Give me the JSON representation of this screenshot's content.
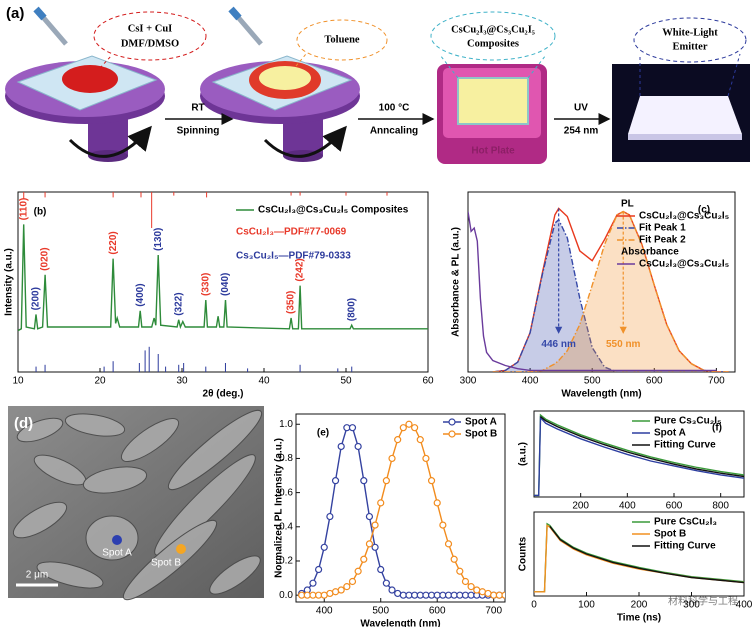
{
  "panel_a": {
    "label": "(a)",
    "step1_callout": [
      "CsI + CuI",
      "DMF/DMSO"
    ],
    "step2_callout": "Toluene",
    "step3_callout": [
      "CsCu₂I₃@Cs₃Cu₂I₅",
      "Composites"
    ],
    "step3_plate": "Hot Plate",
    "step4_callout": [
      "White-Light",
      "Emitter"
    ],
    "arrows": [
      {
        "top": "RT",
        "bottom": "Spinning"
      },
      {
        "top": "100 °C",
        "bottom": "Anncaling"
      },
      {
        "top": "UV",
        "bottom": "254 nm"
      }
    ]
  },
  "panel_d": {
    "label": "(d)",
    "spot_a": "Spot A",
    "spot_b": "Spot B",
    "scale_bar": "2 μm"
  },
  "watermark": "材料科学与工程",
  "chart_data": [
    {
      "type": "line",
      "panel": "(b)",
      "xlabel": "2θ (deg.)",
      "ylabel": "Intensity (a.u.)",
      "xlim": [
        10,
        60
      ],
      "ylim": [
        0,
        100
      ],
      "xticks": [
        10,
        20,
        30,
        40,
        50,
        60
      ],
      "legend": "upper right",
      "x": [
        10,
        10.4,
        10.7,
        11,
        12,
        12.2,
        12.4,
        13,
        13.3,
        13.6,
        21.3,
        21.6,
        21.9,
        22.1,
        22.4,
        24.7,
        24.9,
        25.1,
        26.3,
        26.6,
        26.8,
        27.1,
        27.4,
        29.4,
        29.6,
        29.8,
        30.1,
        30.4,
        32.7,
        32.9,
        33.1,
        34.2,
        34.4,
        34.6,
        35.1,
        35.3,
        35.5,
        43.1,
        43.3,
        43.5,
        44.2,
        44.4,
        44.6,
        50.5,
        50.7,
        50.9,
        60
      ],
      "series": [
        {
          "name": "CsCu₂I₃@Cs₃Cu₂I₅ Composites",
          "color": "#2e8b3a",
          "values": [
            23,
            24,
            82,
            25,
            24,
            32,
            24,
            25,
            54,
            25,
            25,
            63,
            27,
            30,
            25,
            25,
            34,
            25,
            25,
            30,
            26,
            65,
            26,
            25,
            29,
            25,
            28,
            25,
            25,
            40,
            25,
            25,
            31,
            25,
            25,
            40,
            25,
            24,
            30,
            24,
            24,
            48,
            24,
            24,
            26,
            24,
            24
          ]
        }
      ],
      "stick_series": [
        {
          "name": "CsCu₂I₃—PDF#77-0069",
          "color": "#e8392a",
          "anchor": "top",
          "x": [
            10.7,
            13.3,
            21.6,
            25.0,
            26.3,
            29.0,
            33.0,
            43.3,
            44.4,
            50.0,
            55.0
          ],
          "values": [
            4,
            3,
            3,
            3,
            20,
            2,
            3,
            2,
            2,
            2,
            2
          ]
        },
        {
          "name": "Cs₃Cu₂I₅—PDF#79-0333",
          "color": "#2c3a9c",
          "anchor": "bottom",
          "x": [
            12.2,
            13.3,
            20.5,
            21.6,
            24.8,
            25.5,
            26.0,
            27.1,
            28.0,
            29.6,
            30.2,
            32.9,
            35.3,
            38.0,
            44.4,
            49.0,
            50.7
          ],
          "values": [
            3,
            4,
            3,
            6,
            5,
            12,
            14,
            10,
            3,
            4,
            5,
            3,
            5,
            2,
            4,
            2,
            3
          ]
        }
      ],
      "annotations": [
        {
          "text": "(110)",
          "x": 10.7,
          "color": "#e8392a"
        },
        {
          "text": "(200)",
          "x": 12.2,
          "color": "#2c3a9c"
        },
        {
          "text": "(020)",
          "x": 13.3,
          "color": "#e8392a"
        },
        {
          "text": "(220)",
          "x": 21.6,
          "color": "#e8392a"
        },
        {
          "text": "(400)",
          "x": 24.9,
          "color": "#2c3a9c"
        },
        {
          "text": "(130)",
          "x": 27.1,
          "color": "#2c3a9c"
        },
        {
          "text": "(322)",
          "x": 29.6,
          "color": "#2c3a9c"
        },
        {
          "text": "(330)",
          "x": 32.9,
          "color": "#e8392a"
        },
        {
          "text": "(040)",
          "x": 35.3,
          "color": "#2c3a9c"
        },
        {
          "text": "(350)",
          "x": 43.3,
          "color": "#e8392a"
        },
        {
          "text": "(242)",
          "x": 44.4,
          "color": "#e8392a"
        },
        {
          "text": "(800)",
          "x": 50.7,
          "color": "#2c3a9c"
        }
      ]
    },
    {
      "type": "line",
      "panel": "(c)",
      "xlabel": "Wavelength (nm)",
      "ylabel": "Absorbance & PL (a.u.)",
      "xlim": [
        300,
        730
      ],
      "ylim": [
        0,
        1.1
      ],
      "xticks": [
        300,
        400,
        500,
        600,
        700
      ],
      "legend": "upper right",
      "x": [
        340,
        360,
        380,
        400,
        420,
        440,
        446,
        460,
        480,
        500,
        520,
        540,
        550,
        560,
        580,
        600,
        620,
        640,
        660,
        680,
        700,
        720
      ],
      "series": [
        {
          "legend_title": "PL",
          "name": "CsCu₂I₃@Cs₃Cu₂I₅",
          "color": "#e8391d",
          "values": [
            0,
            0.01,
            0.06,
            0.24,
            0.61,
            0.96,
            1.0,
            0.95,
            0.74,
            0.68,
            0.81,
            0.96,
            0.98,
            0.96,
            0.78,
            0.53,
            0.29,
            0.13,
            0.05,
            0.01,
            0,
            0
          ]
        },
        {
          "name": "Fit Peak 1",
          "color": "#3548a8",
          "style": "dashdot",
          "fill": true,
          "values": [
            0,
            0.01,
            0.06,
            0.24,
            0.6,
            0.91,
            0.93,
            0.82,
            0.45,
            0.15,
            0.03,
            0,
            0,
            0,
            0,
            0,
            0,
            0,
            0,
            0,
            0,
            0
          ]
        },
        {
          "name": "Fit Peak 2",
          "color": "#f0912a",
          "style": "dashdot",
          "fill": true,
          "values": [
            0,
            0,
            0,
            0,
            0.01,
            0.05,
            0.07,
            0.13,
            0.29,
            0.53,
            0.78,
            0.96,
            0.98,
            0.96,
            0.78,
            0.53,
            0.29,
            0.13,
            0.05,
            0.01,
            0,
            0
          ]
        },
        {
          "legend_title": "Absorbance",
          "name": "CsCu₂I₃@Cs₃Cu₂I₅",
          "color": "#6a3b9c",
          "x": [
            300,
            305,
            310,
            315,
            320,
            325,
            330,
            340,
            360,
            380,
            400,
            450,
            500,
            600,
            700
          ],
          "values": [
            0.98,
            0.86,
            0.88,
            0.8,
            0.45,
            0.22,
            0.12,
            0.07,
            0.04,
            0.02,
            0.01,
            0.01,
            0.01,
            0.01,
            0.01
          ]
        }
      ],
      "annotations": [
        {
          "text": "446 nm",
          "x": 446,
          "color": "#3548a8"
        },
        {
          "text": "550 nm",
          "x": 550,
          "color": "#f0912a"
        }
      ]
    },
    {
      "type": "line",
      "panel": "(e)",
      "xlabel": "Wavelength (nm)",
      "ylabel": "Normalized PL Intensity (a.u.)",
      "xlim": [
        350,
        720
      ],
      "ylim": [
        -0.04,
        1.06
      ],
      "xticks": [
        400,
        500,
        600,
        700
      ],
      "yticks": [
        {
          "value": 0,
          "label": "0.0"
        },
        0.2,
        0.4,
        0.6,
        0.8,
        {
          "value": 1,
          "label": "1.0"
        }
      ],
      "legend": "upper right",
      "markers": true,
      "x": [
        360,
        370,
        380,
        390,
        400,
        410,
        420,
        430,
        440,
        450,
        460,
        470,
        480,
        490,
        500,
        510,
        520,
        530,
        540,
        550,
        560,
        570,
        580,
        590,
        600,
        610,
        620,
        630,
        640,
        650,
        660,
        670,
        680,
        690,
        700,
        710,
        720
      ],
      "series": [
        {
          "name": "Spot A",
          "color": "#3442a0",
          "values": [
            0.01,
            0.03,
            0.07,
            0.15,
            0.28,
            0.46,
            0.67,
            0.87,
            0.98,
            0.98,
            0.87,
            0.67,
            0.46,
            0.28,
            0.15,
            0.07,
            0.03,
            0.01,
            0,
            0,
            0,
            0,
            0,
            0,
            0,
            0,
            0,
            0,
            0,
            0,
            0,
            0,
            0,
            0,
            0,
            0,
            0
          ]
        },
        {
          "name": "Spot B",
          "color": "#f28c1e",
          "values": [
            0,
            0,
            0,
            0,
            0,
            0.01,
            0.02,
            0.03,
            0.05,
            0.08,
            0.14,
            0.21,
            0.3,
            0.41,
            0.54,
            0.67,
            0.8,
            0.91,
            0.98,
            1.0,
            0.98,
            0.91,
            0.8,
            0.67,
            0.54,
            0.41,
            0.3,
            0.21,
            0.14,
            0.08,
            0.05,
            0.03,
            0.02,
            0.01,
            0,
            0,
            0
          ]
        }
      ]
    },
    {
      "type": "line",
      "panel": "(f)",
      "ylabel": "(a.u.)",
      "xlim": [
        0,
        900
      ],
      "ylim": [
        0,
        1.05
      ],
      "xticks": [
        200,
        400,
        600,
        800
      ],
      "legend": "upper right",
      "x": [
        0,
        20,
        28,
        50,
        100,
        200,
        300,
        400,
        500,
        600,
        700,
        800,
        900
      ],
      "series": [
        {
          "name": "Pure Cs₃Cu₂I₅",
          "color": "#3a9a3a",
          "values": [
            0.02,
            0.02,
            1.0,
            0.95,
            0.88,
            0.76,
            0.66,
            0.57,
            0.49,
            0.42,
            0.36,
            0.31,
            0.27
          ]
        },
        {
          "name": "Spot A",
          "color": "#2d3ea0",
          "values": [
            0.02,
            0.02,
            0.97,
            0.9,
            0.83,
            0.71,
            0.61,
            0.52,
            0.44,
            0.38,
            0.32,
            0.27,
            0.23
          ]
        },
        {
          "name": "Fitting Curve",
          "color": "#111111",
          "values": [
            null,
            null,
            0.98,
            0.93,
            0.86,
            0.74,
            0.64,
            0.55,
            0.47,
            0.4,
            0.34,
            0.29,
            0.25
          ]
        }
      ]
    },
    {
      "type": "line",
      "xlabel": "Time (ns)",
      "ylabel": "Counts",
      "xlim": [
        0,
        400
      ],
      "ylim": [
        0,
        1
      ],
      "xticks": [
        0,
        100,
        200,
        300,
        400
      ],
      "legend": "upper right",
      "x": [
        0,
        20,
        25,
        30,
        50,
        75,
        100,
        150,
        200,
        250,
        300,
        350,
        400
      ],
      "series": [
        {
          "name": "Pure CsCu₂I₃",
          "color": "#3a9a3a",
          "values": [
            0.05,
            0.05,
            0.86,
            0.84,
            0.68,
            0.58,
            0.51,
            0.41,
            0.34,
            0.28,
            0.23,
            0.2,
            0.17
          ]
        },
        {
          "name": "Spot B",
          "color": "#f29020",
          "values": [
            0.05,
            0.05,
            0.84,
            0.82,
            0.66,
            0.56,
            0.49,
            0.39,
            0.32,
            0.27,
            0.22,
            0.19,
            0.16
          ]
        },
        {
          "name": "Fitting Curve",
          "color": "#111111",
          "values": [
            null,
            null,
            null,
            0.83,
            0.67,
            0.57,
            0.5,
            0.4,
            0.33,
            0.27,
            0.22,
            0.19,
            0.16
          ]
        }
      ]
    }
  ]
}
